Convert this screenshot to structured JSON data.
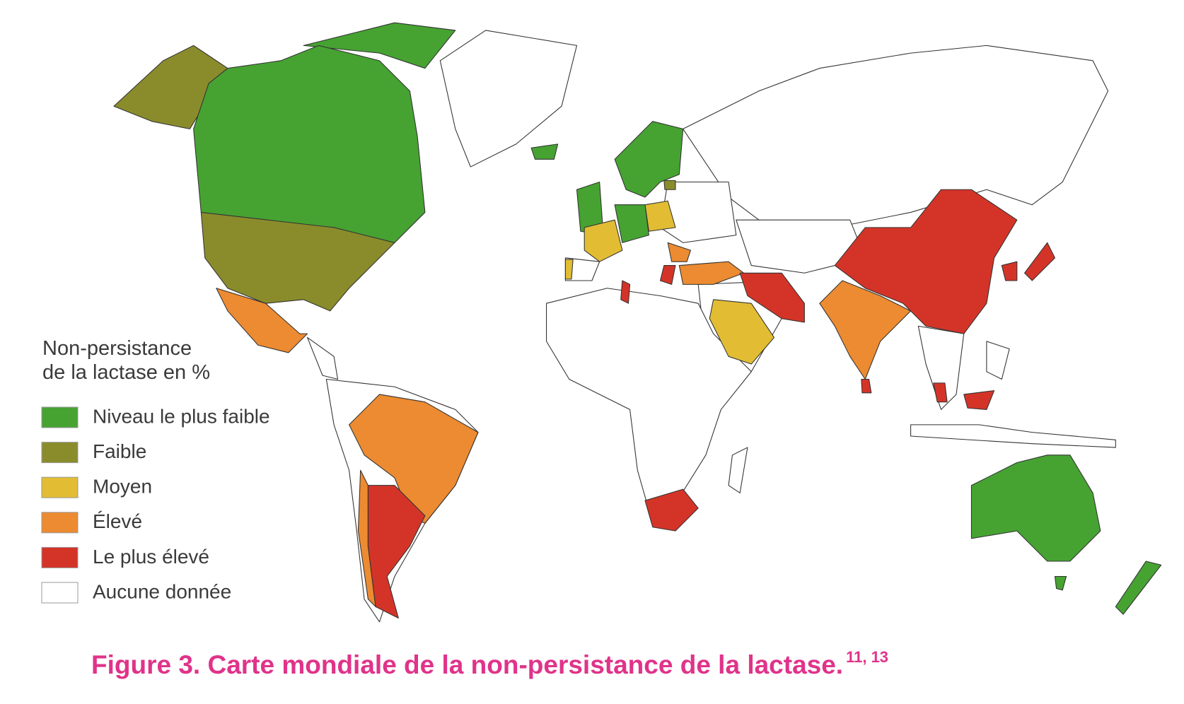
{
  "legend": {
    "title_lines": [
      "Non-persistance",
      "de la lactase en %"
    ],
    "items": [
      {
        "label": "Niveau le plus faible",
        "color": "#46a332"
      },
      {
        "label": "Faible",
        "color": "#8a8c2c"
      },
      {
        "label": "Moyen",
        "color": "#e2bd34"
      },
      {
        "label": "Élevé",
        "color": "#ec8b31"
      },
      {
        "label": "Le plus élevé",
        "color": "#d43428"
      },
      {
        "label": "Aucune donnée",
        "color": "#ffffff"
      }
    ]
  },
  "caption": {
    "text": "Figure 3. Carte mondiale de la non-persistance de la lactase.",
    "superscript": "11, 13"
  }
}
